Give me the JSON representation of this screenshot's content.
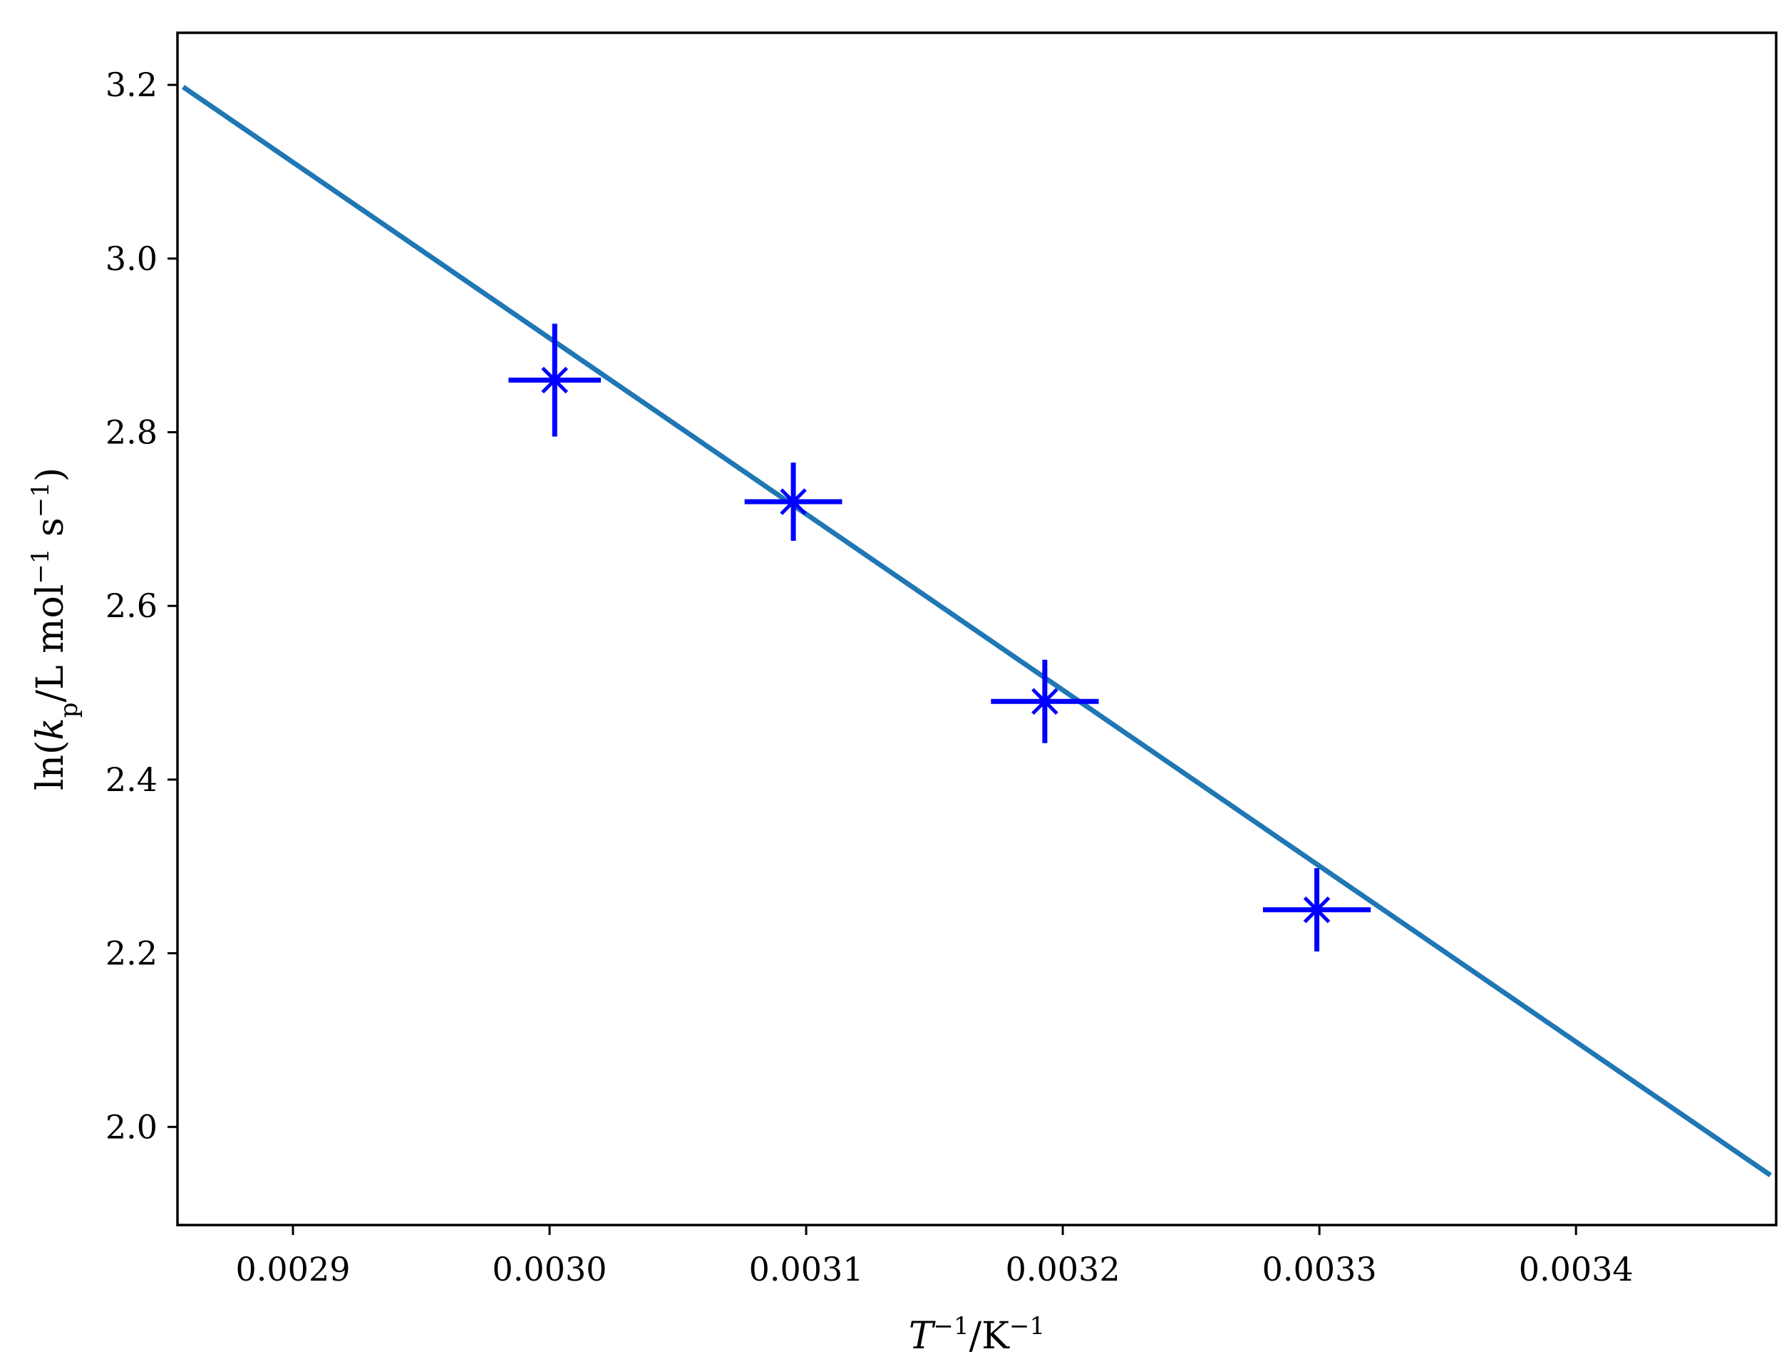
{
  "chart_data": {
    "type": "scatter",
    "xlabel": {
      "base": "T",
      "sup1": "−1",
      "sep": "/K",
      "sup2": "−1"
    },
    "ylabel": {
      "pre": "ln(",
      "k": "k",
      "sub": "p",
      "mid": "/L mol",
      "sup1": "−1",
      "s": " s",
      "sup2": "−1",
      "post": ")"
    },
    "xlim": [
      0.002855,
      0.003478
    ],
    "ylim": [
      1.887,
      3.26
    ],
    "xticks": [
      0.0029,
      0.003,
      0.0031,
      0.0032,
      0.0033,
      0.0034
    ],
    "xtick_labels": [
      "0.0029",
      "0.0030",
      "0.0031",
      "0.0032",
      "0.0033",
      "0.0034"
    ],
    "yticks": [
      2.0,
      2.2,
      2.4,
      2.6,
      2.8,
      3.0,
      3.2
    ],
    "ytick_labels": [
      "2.0",
      "2.2",
      "2.4",
      "2.6",
      "2.8",
      "3.0",
      "3.2"
    ],
    "grid": false,
    "series": [
      {
        "kind": "errorbar",
        "marker": "x",
        "color": "#0000ff",
        "points": [
          {
            "x": 0.003002,
            "y": 2.86,
            "xerr": 1.8e-05,
            "yerr": 0.065
          },
          {
            "x": 0.003095,
            "y": 2.72,
            "xerr": 1.9e-05,
            "yerr": 0.045
          },
          {
            "x": 0.003193,
            "y": 2.49,
            "xerr": 2.1e-05,
            "yerr": 0.048
          },
          {
            "x": 0.003299,
            "y": 2.25,
            "xerr": 2.1e-05,
            "yerr": 0.048
          }
        ]
      },
      {
        "kind": "line",
        "color": "#1f77b4",
        "x": [
          0.002858,
          0.003475
        ],
        "y": [
          3.196,
          1.946
        ]
      }
    ]
  }
}
